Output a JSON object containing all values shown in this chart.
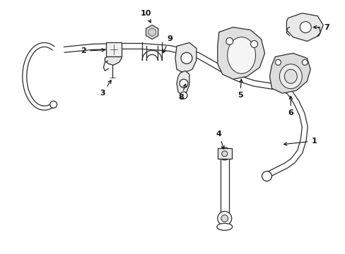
{
  "background_color": "#ffffff",
  "line_color": "#2a2a2a",
  "figsize": [
    4.89,
    3.6
  ],
  "dpi": 100,
  "xlim": [
    0,
    489
  ],
  "ylim": [
    0,
    360
  ]
}
